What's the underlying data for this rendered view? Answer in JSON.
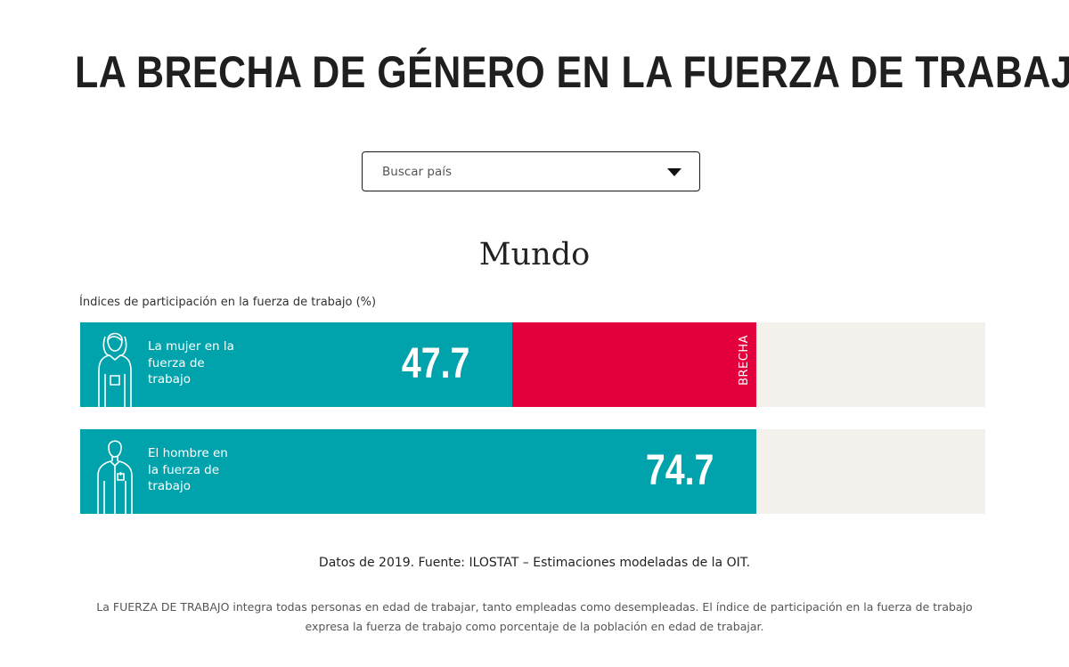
{
  "header": {
    "title": "LA BRECHA DE GÉNERO EN LA FUERZA DE TRABAJO"
  },
  "search": {
    "placeholder": "Buscar país",
    "icon": "chevron-down-icon"
  },
  "region": "Mundo",
  "chart_data": {
    "type": "bar",
    "orientation": "horizontal",
    "title": "Mundo",
    "subtitle": "Índices de participación en la fuerza de trabajo (%)",
    "xlim": [
      0,
      100
    ],
    "categories": [
      "La mujer en la fuerza de trabajo",
      "El hombre en la fuerza de trabajo"
    ],
    "values": [
      47.7,
      74.7
    ],
    "value_labels": [
      "47.7",
      "74.7"
    ],
    "gap": {
      "label": "BRECHA",
      "from": 47.7,
      "to": 74.7
    },
    "colors": {
      "bar": "#00a3ac",
      "gap": "#e4003c",
      "track": "#f4f1ed"
    }
  },
  "footer": {
    "source": "Datos de 2019. Fuente: ILOSTAT – Estimaciones modeladas de la OIT.",
    "note": "La FUERZA DE TRABAJO integra todas personas en edad de trabajar, tanto empleadas como desempleadas. El índice de participación en la fuerza de trabajo expresa la fuerza de trabajo como porcentaje de la población en edad de trabajar."
  }
}
